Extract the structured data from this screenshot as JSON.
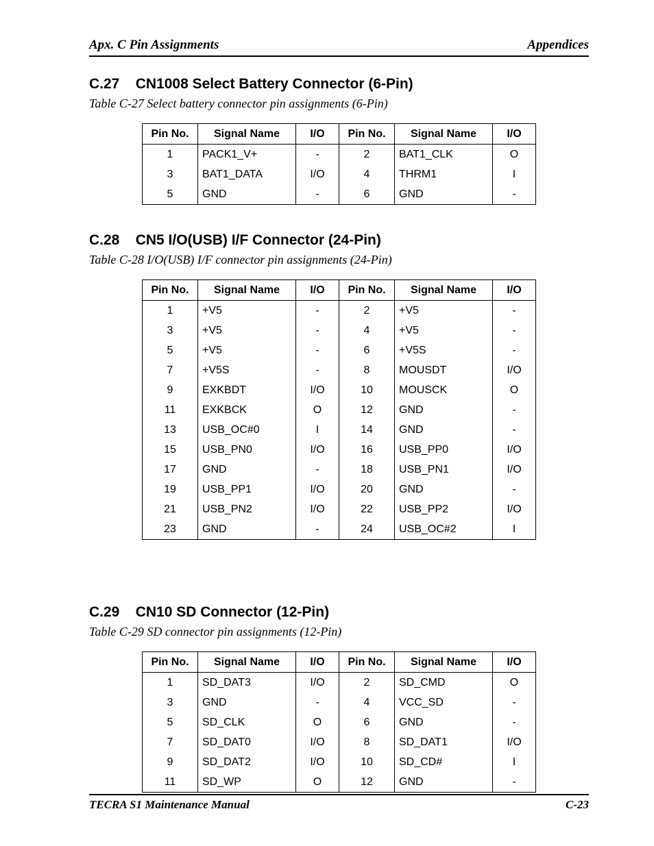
{
  "header": {
    "left": "Apx. C  Pin Assignments",
    "right": "Appendices"
  },
  "footer": {
    "left": "TECRA S1   Maintenance Manual",
    "right": "C-23"
  },
  "sections": [
    {
      "heading_num": "C.27",
      "heading_text": "CN1008 Select Battery Connector (6-Pin)",
      "caption": "Table C-27    Select battery connector pin assignments (6-Pin)",
      "thead": [
        "Pin No.",
        "Signal Name",
        "I/O",
        "Pin No.",
        "Signal Name",
        "I/O"
      ],
      "rows": [
        [
          "1",
          "PACK1_V+",
          "-",
          "2",
          "BAT1_CLK",
          "O"
        ],
        [
          "3",
          "BAT1_DATA",
          "I/O",
          "4",
          "THRM1",
          "I"
        ],
        [
          "5",
          "GND",
          "-",
          "6",
          "GND",
          "-"
        ]
      ]
    },
    {
      "heading_num": "C.28",
      "heading_text": "CN5  I/O(USB) I/F  Connector (24-Pin)",
      "caption": "Table C-28    I/O(USB)  I/F connector pin assignments (24-Pin)",
      "thead": [
        "Pin No.",
        "Signal Name",
        "I/O",
        "Pin No.",
        "Signal Name",
        "I/O"
      ],
      "rows": [
        [
          "1",
          "+V5",
          "-",
          "2",
          "+V5",
          "-"
        ],
        [
          "3",
          "+V5",
          "-",
          "4",
          "+V5",
          "-"
        ],
        [
          "5",
          "+V5",
          "-",
          "6",
          "+V5S",
          "-"
        ],
        [
          "7",
          "+V5S",
          "-",
          "8",
          "MOUSDT",
          "I/O"
        ],
        [
          "9",
          "EXKBDT",
          "I/O",
          "10",
          "MOUSCK",
          "O"
        ],
        [
          "11",
          "EXKBCK",
          "O",
          "12",
          "GND",
          "-"
        ],
        [
          "13",
          "USB_OC#0",
          "I",
          "14",
          "GND",
          "-"
        ],
        [
          "15",
          "USB_PN0",
          "I/O",
          "16",
          "USB_PP0",
          "I/O"
        ],
        [
          "17",
          "GND",
          "-",
          "18",
          "USB_PN1",
          "I/O"
        ],
        [
          "19",
          "USB_PP1",
          "I/O",
          "20",
          "GND",
          "-"
        ],
        [
          "21",
          "USB_PN2",
          "I/O",
          "22",
          "USB_PP2",
          "I/O"
        ],
        [
          "23",
          "GND",
          "-",
          "24",
          "USB_OC#2",
          "I"
        ]
      ]
    },
    {
      "heading_num": "C.29",
      "heading_text": "CN10 SD Connector (12-Pin)",
      "caption": "Table C-29    SD connector pin assignments (12-Pin)",
      "thead": [
        "Pin No.",
        "Signal Name",
        "I/O",
        "Pin No.",
        "Signal Name",
        "I/O"
      ],
      "rows": [
        [
          "1",
          "SD_DAT3",
          "I/O",
          "2",
          "SD_CMD",
          "O"
        ],
        [
          "3",
          "GND",
          "-",
          "4",
          "VCC_SD",
          "-"
        ],
        [
          "5",
          "SD_CLK",
          "O",
          "6",
          "GND",
          "-"
        ],
        [
          "7",
          "SD_DAT0",
          "I/O",
          "8",
          "SD_DAT1",
          "I/O"
        ],
        [
          "9",
          "SD_DAT2",
          "I/O",
          "10",
          "SD_CD#",
          "I"
        ],
        [
          "11",
          "SD_WP",
          "O",
          "12",
          "GND",
          "-"
        ]
      ]
    }
  ]
}
